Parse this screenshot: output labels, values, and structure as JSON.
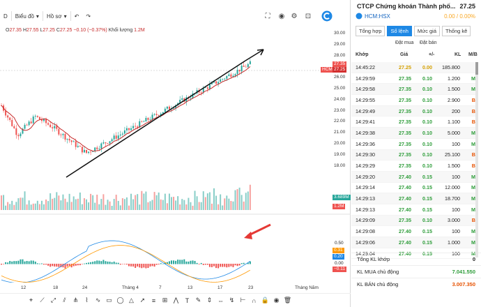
{
  "toolbar": {
    "interval": "D",
    "indicators_label": "Biểu đồ",
    "profile_label": "Hồ sơ"
  },
  "ohlc": {
    "open_label": "O",
    "open": "27.35",
    "high_label": "H",
    "high": "27.55",
    "low_label": "L",
    "low": "27.25",
    "close_label": "C",
    "close": "27.25",
    "change": "−0.10 (−0.37%)",
    "volume_label": "Khối lượng",
    "volume": "1.2M"
  },
  "price_axis": [
    "30.00",
    "29.00",
    "28.00",
    "27.00",
    "26.00",
    "25.00",
    "24.00",
    "23.00",
    "22.00",
    "21.00",
    "20.00",
    "19.00",
    "18.00"
  ],
  "price_tags": {
    "top": "27.35",
    "last": "27.25",
    "symbol": "HCM",
    "volume": "3.689M",
    "volume2": "1.2M",
    "macd1": "0.31",
    "macd2": "0.20",
    "macd3": "−0.11"
  },
  "indicator_axis": [
    "0.50",
    "0.00"
  ],
  "time_axis": [
    "12",
    "18",
    "24",
    "Tháng 4",
    "7",
    "13",
    "17",
    "23",
    "Tháng Năm"
  ],
  "colors": {
    "up": "#26a69a",
    "down": "#ef5350",
    "accent": "#1e88e5",
    "green": "#2e9d3a",
    "yellow": "#d4a000"
  },
  "panel": {
    "title": "CTCP Chứng khoán Thành phố...",
    "price": "27.25",
    "symbol": "HCM:HSX",
    "change": "0.00 / 0.00%",
    "tabs": [
      "Tổng hợp",
      "Sổ lệnh",
      "Mức giá",
      "Thống kê"
    ],
    "active_tab": "Sổ lệnh",
    "orderbook_buy": "Đặt mua",
    "orderbook_sell": "Đặt bán",
    "columns": {
      "time": "Khớp",
      "price": "Giá",
      "change": "+/-",
      "volume": "KL",
      "side": "M/B"
    },
    "trades": [
      {
        "time": "14:45:22",
        "price": "27.25",
        "change": "0.00",
        "volume": "185.800",
        "side": "",
        "color": "yellow"
      },
      {
        "time": "14:29:59",
        "price": "27.35",
        "change": "0.10",
        "volume": "1.200",
        "side": "M",
        "color": "green"
      },
      {
        "time": "14:29:58",
        "price": "27.35",
        "change": "0.10",
        "volume": "1.500",
        "side": "M",
        "color": "green"
      },
      {
        "time": "14:29:55",
        "price": "27.35",
        "change": "0.10",
        "volume": "2.900",
        "side": "B",
        "color": "green"
      },
      {
        "time": "14:29:49",
        "price": "27.35",
        "change": "0.10",
        "volume": "200",
        "side": "B",
        "color": "green"
      },
      {
        "time": "14:29:41",
        "price": "27.35",
        "change": "0.10",
        "volume": "1.100",
        "side": "B",
        "color": "green"
      },
      {
        "time": "14:29:38",
        "price": "27.35",
        "change": "0.10",
        "volume": "5.000",
        "side": "M",
        "color": "green"
      },
      {
        "time": "14:29:36",
        "price": "27.35",
        "change": "0.10",
        "volume": "100",
        "side": "M",
        "color": "green"
      },
      {
        "time": "14:29:30",
        "price": "27.35",
        "change": "0.10",
        "volume": "25.100",
        "side": "B",
        "color": "green"
      },
      {
        "time": "14:29:29",
        "price": "27.35",
        "change": "0.10",
        "volume": "1.500",
        "side": "B",
        "color": "green"
      },
      {
        "time": "14:29:20",
        "price": "27.40",
        "change": "0.15",
        "volume": "100",
        "side": "M",
        "color": "green"
      },
      {
        "time": "14:29:14",
        "price": "27.40",
        "change": "0.15",
        "volume": "12.000",
        "side": "M",
        "color": "green"
      },
      {
        "time": "14:29:13",
        "price": "27.40",
        "change": "0.15",
        "volume": "18.700",
        "side": "M",
        "color": "green"
      },
      {
        "time": "14:29:13",
        "price": "27.40",
        "change": "0.15",
        "volume": "100",
        "side": "M",
        "color": "green"
      },
      {
        "time": "14:29:09",
        "price": "27.35",
        "change": "0.10",
        "volume": "3.000",
        "side": "B",
        "color": "green"
      },
      {
        "time": "14:29:08",
        "price": "27.40",
        "change": "0.15",
        "volume": "100",
        "side": "M",
        "color": "green"
      },
      {
        "time": "14:29:06",
        "price": "27.40",
        "change": "0.15",
        "volume": "1.000",
        "side": "M",
        "color": "green"
      },
      {
        "time": "14:29:04",
        "price": "27.40",
        "change": "0.15",
        "volume": "100",
        "side": "M",
        "color": "green"
      }
    ],
    "total_label": "Tổng KL khớp",
    "total_value": "0",
    "buy_active_label": "KL MUA chủ động",
    "buy_active_value": "7.041.550",
    "sell_active_label": "KL BÁN chủ động",
    "sell_active_value": "3.007.350"
  }
}
